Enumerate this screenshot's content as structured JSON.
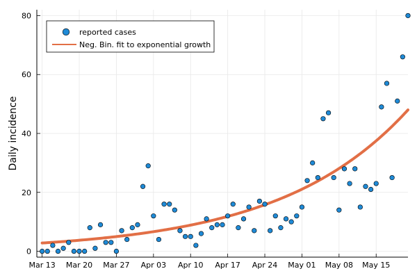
{
  "chart_data": {
    "type": "scatter",
    "title": "",
    "xlabel": "",
    "ylabel": "Daily incidence",
    "start_date": "2020-03-13",
    "xticks": [
      {
        "label": "Mar 13",
        "date": "2020-03-13"
      },
      {
        "label": "Mar 20",
        "date": "2020-03-20"
      },
      {
        "label": "Mar 27",
        "date": "2020-03-27"
      },
      {
        "label": "Apr 03",
        "date": "2020-04-03"
      },
      {
        "label": "Apr 10",
        "date": "2020-04-10"
      },
      {
        "label": "Apr 17",
        "date": "2020-04-17"
      },
      {
        "label": "Apr 24",
        "date": "2020-04-24"
      },
      {
        "label": "May 01",
        "date": "2020-05-01"
      },
      {
        "label": "May 08",
        "date": "2020-05-08"
      },
      {
        "label": "May 15",
        "date": "2020-05-15"
      }
    ],
    "yticks": [
      0,
      20,
      40,
      60,
      80
    ],
    "ylim": [
      -2,
      82
    ],
    "xlim": [
      "2020-03-12",
      "2020-05-21"
    ],
    "grid": true,
    "legend_position": "top-left",
    "colors": {
      "points": "#1f8ad6",
      "fit": "#e26f46"
    },
    "series": [
      {
        "name": "reported cases",
        "type": "scatter",
        "values": [
          0,
          0,
          2,
          0,
          1,
          3,
          0,
          0,
          0,
          8,
          1,
          9,
          3,
          3,
          0,
          7,
          4,
          8,
          9,
          22,
          29,
          12,
          4,
          16,
          16,
          14,
          7,
          5,
          5,
          2,
          6,
          11,
          8,
          9,
          9,
          12,
          16,
          8,
          11,
          15,
          7,
          17,
          16,
          7,
          12,
          8,
          11,
          10,
          12,
          15,
          24,
          30,
          25,
          45,
          47,
          25,
          14,
          28,
          23,
          28,
          15,
          22,
          21,
          23,
          49,
          57,
          25,
          51,
          66,
          80
        ]
      },
      {
        "name": "Neg. Bin. fit to exponential growth",
        "type": "line",
        "values": [
          2.8,
          48.0
        ]
      }
    ]
  }
}
